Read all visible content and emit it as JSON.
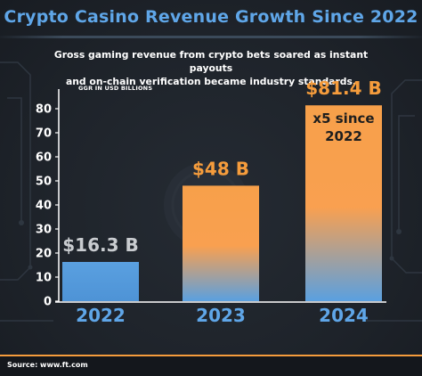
{
  "title": "Crypto Casino Revenue Growth Since 2022",
  "subtitle_line1": "Gross gaming revenue from crypto bets soared as instant payouts",
  "subtitle_line2": "and on-chain verification became industry standards.",
  "unit_note": "GGR IN USD BILLIONS",
  "source": "Source: www.ft.com",
  "colors": {
    "title": "#5fa6e8",
    "bar_top_orange": "#f7a04a",
    "bar_bottom_blue": "#5aa0e0",
    "bar_2022": "#5aa0e0",
    "label_orange": "#f59c3c",
    "label_grey": "#c9ccd0",
    "year_label": "#5fa6e8"
  },
  "chart_data": {
    "type": "bar",
    "categories": [
      "2022",
      "2023",
      "2024"
    ],
    "values": [
      16.3,
      48,
      81.4
    ],
    "data_labels": [
      "$16.3 B",
      "$48 B",
      "$81.4 B"
    ],
    "annotation": {
      "bar_index": 2,
      "line1": "x5 since",
      "line2": "2022"
    },
    "ylabel": "",
    "ylim": [
      0,
      80
    ],
    "yticks": [
      0,
      10,
      20,
      30,
      40,
      50,
      60,
      70,
      80
    ],
    "grid": false,
    "legend": "none"
  }
}
